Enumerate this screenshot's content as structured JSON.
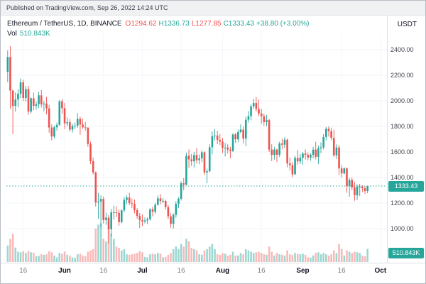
{
  "topbar": {
    "published": "Published on TradingView.com, Sep 26, 2022 14:24 UTC"
  },
  "legend": {
    "symbol": "Ethereum / TetherUS, 1D, BINANCE",
    "open": "O1294.62",
    "high": "H1336.73",
    "low": "L1277.85",
    "close": "C1333.43",
    "change": "+38.80 (+3.00%)",
    "vol_label": "Vol",
    "vol_value": "510.843K"
  },
  "axis": {
    "currency": "USDT",
    "price_badge": "1333.43",
    "volume_badge": "510.843K"
  },
  "colors": {
    "up": "#26a69a",
    "down": "#ef5350",
    "up_vol": "rgba(38,166,154,0.45)",
    "down_vol": "rgba(239,83,80,0.40)",
    "grid": "#f0f3fa",
    "vgrid": "#f5f7f9",
    "axis_line": "#dcdfe4",
    "y_label": "#42454d",
    "x_label_day": "#7c7f8a",
    "x_label_month": "#131722",
    "last_price_line": "#26a69a"
  },
  "chart_data": {
    "type": "candlestick",
    "title": "Ethereum / TetherUS, 1D, BINANCE",
    "quote_currency": "USDT",
    "interval": "1D",
    "legend_position": "top-left",
    "grid": true,
    "columns": [
      "open",
      "high",
      "low",
      "close",
      "volume_thousands"
    ],
    "last_close": 1333.43,
    "last_volume_thousands": 510.843,
    "ylim": [
      880,
      2430
    ],
    "y_ticks": [
      2400,
      2200,
      2000,
      1800,
      1600,
      1400,
      1200,
      1000
    ],
    "x_ticks": [
      {
        "i": 6,
        "label": "16",
        "month": false
      },
      {
        "i": 22,
        "label": "Jun",
        "month": true
      },
      {
        "i": 37,
        "label": "16",
        "month": false
      },
      {
        "i": 52,
        "label": "Jul",
        "month": true
      },
      {
        "i": 67,
        "label": "16",
        "month": false
      },
      {
        "i": 83,
        "label": "Aug",
        "month": true
      },
      {
        "i": 98,
        "label": "16",
        "month": false
      },
      {
        "i": 114,
        "label": "Sep",
        "month": true
      },
      {
        "i": 129,
        "label": "16",
        "month": false
      },
      {
        "i": 144,
        "label": "Oct",
        "month": true
      }
    ],
    "total_slots": 147,
    "candles": [
      [
        2227,
        2394,
        2146,
        2343,
        640
      ],
      [
        2343,
        2427,
        1940,
        2080,
        900
      ],
      [
        2080,
        2087,
        1740,
        1960,
        1100
      ],
      [
        1960,
        2065,
        1915,
        2010,
        560
      ],
      [
        2010,
        2092,
        1951,
        2056,
        400
      ],
      [
        2056,
        2175,
        2020,
        2145,
        380
      ],
      [
        2145,
        2165,
        2000,
        2022,
        420
      ],
      [
        2022,
        2116,
        1995,
        2092,
        350
      ],
      [
        2092,
        2117,
        1890,
        1916,
        430
      ],
      [
        1916,
        2029,
        1900,
        2020,
        380
      ],
      [
        2020,
        2064,
        1926,
        1961,
        360
      ],
      [
        1961,
        1995,
        1930,
        1973,
        220
      ],
      [
        1973,
        2070,
        1945,
        2043,
        240
      ],
      [
        2043,
        2085,
        1948,
        1972,
        300
      ],
      [
        1972,
        2000,
        1917,
        1978,
        280
      ],
      [
        1978,
        2030,
        1895,
        1941,
        300
      ],
      [
        1941,
        1968,
        1750,
        1791,
        420
      ],
      [
        1791,
        1815,
        1690,
        1721,
        380
      ],
      [
        1721,
        1805,
        1705,
        1793,
        250
      ],
      [
        1793,
        1830,
        1766,
        1812,
        180
      ],
      [
        1812,
        2005,
        1805,
        1996,
        350
      ],
      [
        1996,
        2014,
        1900,
        1942,
        320
      ],
      [
        1942,
        1983,
        1780,
        1823,
        400
      ],
      [
        1823,
        1870,
        1800,
        1833,
        280
      ],
      [
        1833,
        1857,
        1760,
        1775,
        250
      ],
      [
        1775,
        1820,
        1752,
        1803,
        180
      ],
      [
        1803,
        1830,
        1780,
        1806,
        160
      ],
      [
        1806,
        1905,
        1790,
        1859,
        300
      ],
      [
        1859,
        1875,
        1735,
        1815,
        320
      ],
      [
        1815,
        1860,
        1780,
        1793,
        250
      ],
      [
        1793,
        1833,
        1765,
        1788,
        230
      ],
      [
        1788,
        1795,
        1640,
        1663,
        400
      ],
      [
        1663,
        1680,
        1505,
        1528,
        450
      ],
      [
        1528,
        1555,
        1424,
        1440,
        500
      ],
      [
        1440,
        1446,
        1172,
        1205,
        1300
      ],
      [
        1205,
        1280,
        1075,
        1212,
        1450
      ],
      [
        1212,
        1260,
        1010,
        1232,
        1500
      ],
      [
        1232,
        1250,
        1040,
        1067,
        900
      ],
      [
        1067,
        1125,
        1030,
        1086,
        800
      ],
      [
        1086,
        1106,
        880,
        995,
        1600
      ],
      [
        995,
        1155,
        940,
        1128,
        1100
      ],
      [
        1128,
        1180,
        1070,
        1128,
        900
      ],
      [
        1128,
        1175,
        1090,
        1124,
        600
      ],
      [
        1124,
        1150,
        1022,
        1051,
        550
      ],
      [
        1051,
        1150,
        1042,
        1143,
        450
      ],
      [
        1143,
        1248,
        1128,
        1225,
        500
      ],
      [
        1225,
        1260,
        1190,
        1243,
        300
      ],
      [
        1243,
        1280,
        1185,
        1199,
        280
      ],
      [
        1199,
        1235,
        1160,
        1193,
        300
      ],
      [
        1193,
        1228,
        1120,
        1144,
        320
      ],
      [
        1144,
        1160,
        1078,
        1099,
        350
      ],
      [
        1099,
        1122,
        1005,
        1067,
        420
      ],
      [
        1067,
        1110,
        1020,
        1056,
        380
      ],
      [
        1056,
        1088,
        1040,
        1064,
        200
      ],
      [
        1064,
        1090,
        1035,
        1074,
        180
      ],
      [
        1074,
        1160,
        1064,
        1151,
        300
      ],
      [
        1151,
        1170,
        1096,
        1132,
        320
      ],
      [
        1132,
        1203,
        1115,
        1187,
        300
      ],
      [
        1187,
        1260,
        1180,
        1237,
        350
      ],
      [
        1237,
        1270,
        1190,
        1216,
        320
      ],
      [
        1216,
        1238,
        1200,
        1217,
        180
      ],
      [
        1217,
        1225,
        1150,
        1168,
        200
      ],
      [
        1168,
        1184,
        1075,
        1096,
        280
      ],
      [
        1096,
        1120,
        1006,
        1037,
        350
      ],
      [
        1037,
        1120,
        1000,
        1108,
        500
      ],
      [
        1108,
        1215,
        1085,
        1194,
        600
      ],
      [
        1194,
        1245,
        1160,
        1233,
        500
      ],
      [
        1233,
        1370,
        1220,
        1355,
        700
      ],
      [
        1355,
        1395,
        1300,
        1344,
        600
      ],
      [
        1344,
        1595,
        1340,
        1570,
        900
      ],
      [
        1570,
        1620,
        1475,
        1542,
        800
      ],
      [
        1542,
        1585,
        1490,
        1527,
        550
      ],
      [
        1527,
        1600,
        1478,
        1576,
        500
      ],
      [
        1576,
        1630,
        1510,
        1536,
        450
      ],
      [
        1536,
        1580,
        1505,
        1549,
        300
      ],
      [
        1549,
        1610,
        1520,
        1597,
        280
      ],
      [
        1597,
        1605,
        1420,
        1440,
        450
      ],
      [
        1440,
        1470,
        1355,
        1449,
        500
      ],
      [
        1449,
        1660,
        1440,
        1637,
        600
      ],
      [
        1637,
        1760,
        1580,
        1724,
        700
      ],
      [
        1724,
        1780,
        1690,
        1728,
        500
      ],
      [
        1728,
        1765,
        1661,
        1695,
        300
      ],
      [
        1695,
        1740,
        1655,
        1681,
        280
      ],
      [
        1681,
        1708,
        1592,
        1633,
        350
      ],
      [
        1633,
        1672,
        1565,
        1634,
        320
      ],
      [
        1634,
        1660,
        1588,
        1618,
        250
      ],
      [
        1618,
        1640,
        1550,
        1608,
        280
      ],
      [
        1608,
        1745,
        1600,
        1737,
        400
      ],
      [
        1737,
        1750,
        1672,
        1699,
        250
      ],
      [
        1699,
        1775,
        1675,
        1756,
        250
      ],
      [
        1756,
        1815,
        1745,
        1775,
        350
      ],
      [
        1775,
        1800,
        1668,
        1704,
        300
      ],
      [
        1704,
        1875,
        1645,
        1852,
        500
      ],
      [
        1852,
        1920,
        1830,
        1880,
        450
      ],
      [
        1880,
        1972,
        1848,
        1957,
        400
      ],
      [
        1957,
        2015,
        1940,
        1983,
        350
      ],
      [
        1983,
        2030,
        1915,
        1936,
        380
      ],
      [
        1936,
        2010,
        1880,
        1901,
        400
      ],
      [
        1901,
        1935,
        1820,
        1880,
        350
      ],
      [
        1880,
        1900,
        1805,
        1834,
        300
      ],
      [
        1834,
        1890,
        1800,
        1849,
        280
      ],
      [
        1849,
        1860,
        1600,
        1618,
        600
      ],
      [
        1618,
        1660,
        1528,
        1577,
        400
      ],
      [
        1577,
        1640,
        1540,
        1619,
        250
      ],
      [
        1619,
        1625,
        1521,
        1578,
        350
      ],
      [
        1578,
        1680,
        1560,
        1666,
        300
      ],
      [
        1666,
        1705,
        1621,
        1657,
        280
      ],
      [
        1657,
        1715,
        1630,
        1696,
        250
      ],
      [
        1696,
        1705,
        1480,
        1510,
        450
      ],
      [
        1510,
        1555,
        1455,
        1496,
        300
      ],
      [
        1496,
        1520,
        1402,
        1425,
        280
      ],
      [
        1425,
        1570,
        1421,
        1554,
        350
      ],
      [
        1554,
        1615,
        1500,
        1526,
        320
      ],
      [
        1526,
        1585,
        1505,
        1554,
        300
      ],
      [
        1554,
        1600,
        1502,
        1587,
        320
      ],
      [
        1587,
        1620,
        1540,
        1577,
        280
      ],
      [
        1577,
        1595,
        1535,
        1556,
        180
      ],
      [
        1556,
        1590,
        1531,
        1578,
        170
      ],
      [
        1578,
        1640,
        1550,
        1618,
        250
      ],
      [
        1618,
        1680,
        1542,
        1562,
        350
      ],
      [
        1562,
        1650,
        1505,
        1629,
        380
      ],
      [
        1629,
        1675,
        1590,
        1636,
        300
      ],
      [
        1636,
        1740,
        1620,
        1717,
        350
      ],
      [
        1717,
        1795,
        1690,
        1781,
        300
      ],
      [
        1781,
        1800,
        1720,
        1762,
        250
      ],
      [
        1762,
        1790,
        1690,
        1710,
        300
      ],
      [
        1710,
        1775,
        1560,
        1573,
        450
      ],
      [
        1573,
        1660,
        1545,
        1635,
        350
      ],
      [
        1635,
        1655,
        1420,
        1471,
        700
      ],
      [
        1471,
        1495,
        1400,
        1432,
        500
      ],
      [
        1432,
        1480,
        1425,
        1471,
        250
      ],
      [
        1471,
        1480,
        1280,
        1335,
        450
      ],
      [
        1335,
        1395,
        1250,
        1380,
        400
      ],
      [
        1380,
        1400,
        1300,
        1323,
        350
      ],
      [
        1323,
        1365,
        1218,
        1261,
        400
      ],
      [
        1261,
        1346,
        1225,
        1328,
        380
      ],
      [
        1328,
        1350,
        1255,
        1329,
        350
      ],
      [
        1329,
        1340,
        1285,
        1316,
        250
      ],
      [
        1316,
        1336,
        1272,
        1294,
        220
      ],
      [
        1294.62,
        1336.73,
        1277.85,
        1333.43,
        510.843
      ]
    ]
  }
}
